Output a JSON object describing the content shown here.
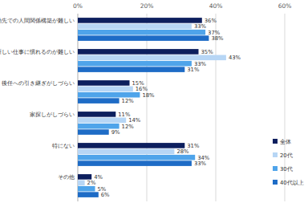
{
  "chart_data": {
    "type": "bar",
    "orientation": "horizontal",
    "categories": [
      "転勤先での人間関係構築が難しい",
      "新しい仕事に慣れるのが難しい",
      "後任への引き継ぎがしづらい",
      "家探しがしづらい",
      "特にない",
      "その他"
    ],
    "series": [
      {
        "name": "全体",
        "color": "#0d1f5e",
        "values": [
          36,
          35,
          15,
          11,
          31,
          4
        ],
        "value_labels": [
          "36%",
          "35%",
          "15%",
          "11%",
          "31%",
          "4%"
        ]
      },
      {
        "name": "20代",
        "color": "#b7d6f5",
        "values": [
          33,
          43,
          16,
          14,
          28,
          2
        ],
        "value_labels": [
          "33%",
          "43%",
          "16%",
          "14%",
          "28%",
          "2%"
        ]
      },
      {
        "name": "30代",
        "color": "#4fa4ea",
        "values": [
          37,
          33,
          18,
          12,
          34,
          5
        ],
        "value_labels": [
          "37%",
          "33%",
          "18%",
          "12%",
          "34%",
          "5%"
        ]
      },
      {
        "name": "40代以上",
        "color": "#1e6cc6",
        "values": [
          38,
          31,
          12,
          9,
          33,
          6
        ],
        "value_labels": [
          "38%",
          "31%",
          "12%",
          "9%",
          "33%",
          "6%"
        ]
      }
    ],
    "xlim": [
      0,
      60
    ],
    "xticks": [
      {
        "value": 0,
        "label": "0%"
      },
      {
        "value": 20,
        "label": "20%"
      },
      {
        "value": 40,
        "label": "40%"
      },
      {
        "value": 60,
        "label": "60%"
      }
    ],
    "grid": true,
    "legend": "lower right",
    "data_labels": true
  }
}
